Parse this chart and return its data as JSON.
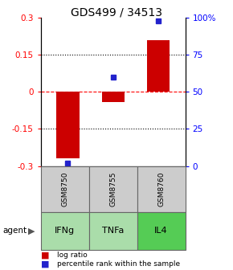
{
  "title": "GDS499 / 34513",
  "samples": [
    "GSM8750",
    "GSM8755",
    "GSM8760"
  ],
  "agents": [
    "IFNg",
    "TNFa",
    "IL4"
  ],
  "log_ratios": [
    -0.27,
    -0.04,
    0.21
  ],
  "percentile_ranks": [
    2,
    60,
    98
  ],
  "bar_color": "#cc0000",
  "dot_color": "#2222cc",
  "ylim": [
    -0.3,
    0.3
  ],
  "yticks_left": [
    -0.3,
    -0.15,
    0,
    0.15,
    0.3
  ],
  "ytick_labels_left": [
    "-0.3",
    "-0.15",
    "0",
    "0.15",
    "0.3"
  ],
  "yticks_right_pct": [
    0,
    25,
    50,
    75,
    100
  ],
  "ytick_labels_right": [
    "0",
    "25",
    "50",
    "75",
    "100%"
  ],
  "grid_dotted": [
    -0.15,
    0.15
  ],
  "grid_dashed_red": [
    0
  ],
  "title_fontsize": 10,
  "agent_colors": [
    "#aaddaa",
    "#aaddaa",
    "#55cc55"
  ],
  "sample_bg": "#cccccc",
  "cell_border": "#666666",
  "legend_bar_label": "log ratio",
  "legend_dot_label": "percentile rank within the sample"
}
